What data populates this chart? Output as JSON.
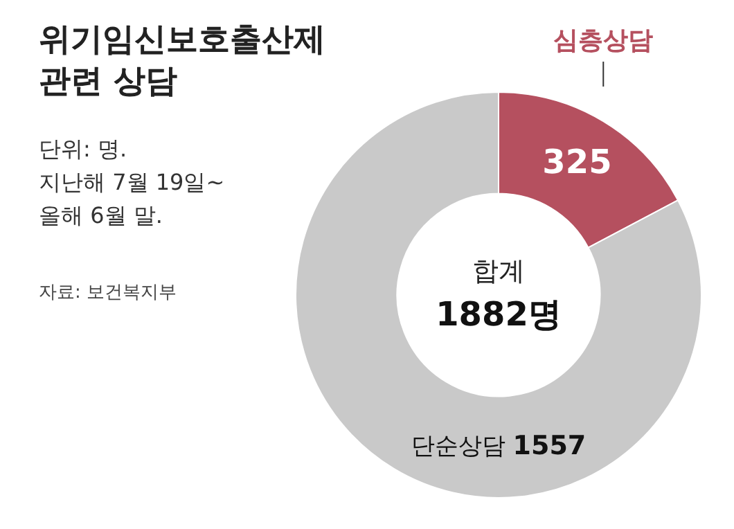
{
  "chart_data": {
    "type": "donut",
    "title": "위기임신보호출산제\n관련 상담",
    "subtitle": "단위: 명.\n지난해 7월 19일~\n올해 6월 말.",
    "annotations": [
      "자료: 보건복지부",
      "합계",
      "1882명"
    ],
    "categories": [
      "심층상담",
      "단순상담"
    ],
    "values": [
      325,
      1557
    ],
    "colors": [
      "#b5505f",
      "#c9c9c9"
    ],
    "data_labels": true,
    "legend": false
  }
}
